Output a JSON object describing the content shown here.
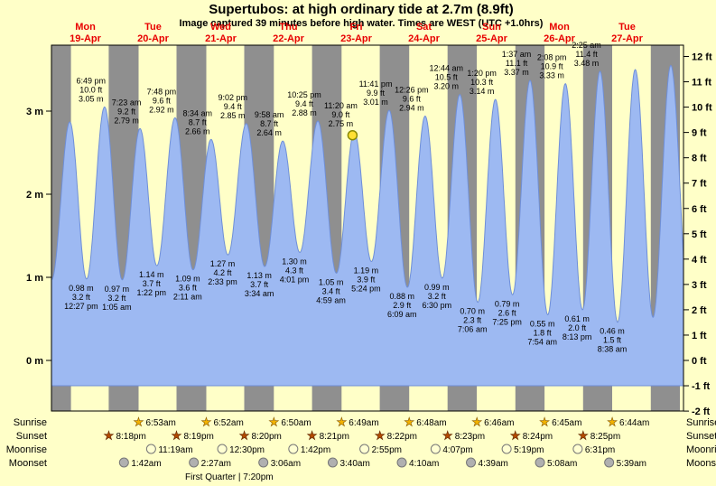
{
  "colors": {
    "background": "#ffffc8",
    "night_band": "#8f8f8f",
    "tide_area": "#9db9f2",
    "tide_outline": "#6f8fd8",
    "day_label": "#e80000",
    "marker_fill": "#ffe033",
    "marker_stroke": "#8a8a00",
    "sunrise_star": "#f2b200",
    "sunset_star": "#b34a00",
    "moonrise": "#ffffd2",
    "moonset": "#b0b0b0"
  },
  "chart_data": {
    "type": "area",
    "title": "Supertubos: at high  ordinary tide at 2.7m (8.9ft)",
    "subtitle": "Image captured 39 minutes before high water. Times are WEST (UTC +1.0hrs)",
    "y_axis_left_ticks": [
      "0 m",
      "1 m",
      "2 m",
      "3 m"
    ],
    "y_axis_right_ticks": [
      "-2 ft",
      "-1 ft",
      "0 ft",
      "1 ft",
      "2 ft",
      "3 ft",
      "4 ft",
      "5 ft",
      "6 ft",
      "7 ft",
      "8 ft",
      "9 ft",
      "10 ft",
      "11 ft",
      "12 ft"
    ],
    "days": [
      {
        "dow": "Mon",
        "date": "19-Apr"
      },
      {
        "dow": "Tue",
        "date": "20-Apr"
      },
      {
        "dow": "Wed",
        "date": "21-Apr"
      },
      {
        "dow": "Thu",
        "date": "22-Apr"
      },
      {
        "dow": "Fri",
        "date": "23-Apr"
      },
      {
        "dow": "Sat",
        "date": "24-Apr"
      },
      {
        "dow": "Sun",
        "date": "25-Apr"
      },
      {
        "dow": "Mon",
        "date": "26-Apr"
      },
      {
        "dow": "Tue",
        "date": "27-Apr"
      }
    ],
    "tide_events": [
      {
        "type": "low",
        "day": 0,
        "time": "12:27 pm",
        "height_m": 0.98,
        "height_ft": 3.2
      },
      {
        "type": "high",
        "day": 0,
        "time": "6:49 pm",
        "height_m": 3.05,
        "height_ft": 10.0
      },
      {
        "type": "low",
        "day": 1,
        "time": "1:05 am",
        "height_m": 0.97,
        "height_ft": 3.2
      },
      {
        "type": "high",
        "day": 1,
        "time": "7:23 am",
        "height_m": 2.79,
        "height_ft": 9.2
      },
      {
        "type": "low",
        "day": 1,
        "time": "1:22 pm",
        "height_m": 1.14,
        "height_ft": 3.7
      },
      {
        "type": "high",
        "day": 1,
        "time": "7:48 pm",
        "height_m": 2.92,
        "height_ft": 9.6
      },
      {
        "type": "low",
        "day": 2,
        "time": "2:11 am",
        "height_m": 1.09,
        "height_ft": 3.6
      },
      {
        "type": "high",
        "day": 2,
        "time": "8:34 am",
        "height_m": 2.66,
        "height_ft": 8.7
      },
      {
        "type": "low",
        "day": 2,
        "time": "2:33 pm",
        "height_m": 1.27,
        "height_ft": 4.2
      },
      {
        "type": "high",
        "day": 2,
        "time": "9:02 pm",
        "height_m": 2.85,
        "height_ft": 9.4
      },
      {
        "type": "low",
        "day": 3,
        "time": "3:34 am",
        "height_m": 1.13,
        "height_ft": 3.7
      },
      {
        "type": "high",
        "day": 3,
        "time": "9:58 am",
        "height_m": 2.64,
        "height_ft": 8.7
      },
      {
        "type": "low",
        "day": 3,
        "time": "4:01 pm",
        "height_m": 1.3,
        "height_ft": 4.3
      },
      {
        "type": "high",
        "day": 3,
        "time": "10:25 pm",
        "height_m": 2.88,
        "height_ft": 9.4
      },
      {
        "type": "low",
        "day": 4,
        "time": "4:59 am",
        "height_m": 1.05,
        "height_ft": 3.4
      },
      {
        "type": "high",
        "day": 4,
        "time": "11:20 am",
        "height_m": 2.75,
        "height_ft": 9.0,
        "current": true
      },
      {
        "type": "low",
        "day": 4,
        "time": "5:24 pm",
        "height_m": 1.19,
        "height_ft": 3.9
      },
      {
        "type": "high",
        "day": 4,
        "time": "11:41 pm",
        "height_m": 3.01,
        "height_ft": 9.9
      },
      {
        "type": "low",
        "day": 5,
        "time": "6:09 am",
        "height_m": 0.88,
        "height_ft": 2.9
      },
      {
        "type": "high",
        "day": 5,
        "time": "12:26 pm",
        "height_m": 2.94,
        "height_ft": 9.6
      },
      {
        "type": "low",
        "day": 5,
        "time": "6:30 pm",
        "height_m": 0.99,
        "height_ft": 3.2
      },
      {
        "type": "high",
        "day": 6,
        "time": "12:44 am",
        "height_m": 3.2,
        "height_ft": 10.5
      },
      {
        "type": "low",
        "day": 6,
        "time": "7:06 am",
        "height_m": 0.7,
        "height_ft": 2.3
      },
      {
        "type": "high",
        "day": 6,
        "time": "1:20 pm",
        "height_m": 3.14,
        "height_ft": 10.3
      },
      {
        "type": "low",
        "day": 6,
        "time": "7:25 pm",
        "height_m": 0.79,
        "height_ft": 2.6
      },
      {
        "type": "high",
        "day": 7,
        "time": "1:37 am",
        "height_m": 3.37,
        "height_ft": 11.1
      },
      {
        "type": "low",
        "day": 7,
        "time": "7:54 am",
        "height_m": 0.55,
        "height_ft": 1.8
      },
      {
        "type": "high",
        "day": 7,
        "time": "2:08 pm",
        "height_m": 3.33,
        "height_ft": 10.9
      },
      {
        "type": "low",
        "day": 7,
        "time": "8:13 pm",
        "height_m": 0.61,
        "height_ft": 2.0
      },
      {
        "type": "high",
        "day": 8,
        "time": "2:25 am",
        "height_m": 3.48,
        "height_ft": 11.4
      },
      {
        "type": "low",
        "day": 8,
        "time": "8:38 am",
        "height_m": 0.46,
        "height_ft": 1.5
      }
    ],
    "padding_events": [
      {
        "hour": -6.2,
        "height_m": 3.0
      },
      {
        "hour": 0.05,
        "height_m": 0.97
      },
      {
        "hour": 6.5,
        "height_m": 2.87
      },
      {
        "hour": 206.9,
        "height_m": 3.5
      },
      {
        "hour": 213.2,
        "height_m": 0.52
      },
      {
        "hour": 219.5,
        "height_m": 3.55
      },
      {
        "hour": 226.0,
        "height_m": 0.6
      }
    ],
    "current_marker": {
      "hour": 106.68,
      "height_m": 2.71
    },
    "night_edge_bands": [
      [
        0,
        6.9
      ],
      [
        212.4,
        222.7
      ]
    ]
  },
  "astro": {
    "rows": [
      {
        "label": "Sunrise",
        "icon": "sunrise-star-icon",
        "items": [
          {
            "day": 1,
            "time": "6:53am"
          },
          {
            "day": 2,
            "time": "6:52am"
          },
          {
            "day": 3,
            "time": "6:50am"
          },
          {
            "day": 4,
            "time": "6:49am"
          },
          {
            "day": 5,
            "time": "6:48am"
          },
          {
            "day": 6,
            "time": "6:46am"
          },
          {
            "day": 7,
            "time": "6:45am"
          },
          {
            "day": 8,
            "time": "6:44am"
          }
        ]
      },
      {
        "label": "Sunset",
        "icon": "sunset-star-icon",
        "items": [
          {
            "day": 0,
            "time": "8:18pm"
          },
          {
            "day": 1,
            "time": "8:19pm"
          },
          {
            "day": 2,
            "time": "8:20pm"
          },
          {
            "day": 3,
            "time": "8:21pm"
          },
          {
            "day": 4,
            "time": "8:22pm"
          },
          {
            "day": 5,
            "time": "8:23pm"
          },
          {
            "day": 6,
            "time": "8:24pm"
          },
          {
            "day": 7,
            "time": "8:25pm"
          }
        ]
      },
      {
        "label": "Moonrise",
        "icon": "moonrise-icon",
        "items": [
          {
            "day": 1,
            "time": "11:19am"
          },
          {
            "day": 2,
            "time": "12:30pm"
          },
          {
            "day": 3,
            "time": "1:42pm"
          },
          {
            "day": 4,
            "time": "2:55pm"
          },
          {
            "day": 5,
            "time": "4:07pm"
          },
          {
            "day": 6,
            "time": "5:19pm"
          },
          {
            "day": 7,
            "time": "6:31pm"
          }
        ]
      },
      {
        "label": "Moonset",
        "icon": "moonset-icon",
        "items": [
          {
            "day": 1,
            "time": "1:42am"
          },
          {
            "day": 2,
            "time": "2:27am"
          },
          {
            "day": 3,
            "time": "3:06am"
          },
          {
            "day": 4,
            "time": "3:40am"
          },
          {
            "day": 5,
            "time": "4:10am"
          },
          {
            "day": 6,
            "time": "4:39am"
          },
          {
            "day": 7,
            "time": "5:08am"
          },
          {
            "day": 8,
            "time": "5:39am"
          }
        ]
      }
    ],
    "footer": "First Quarter | 7:20pm"
  }
}
